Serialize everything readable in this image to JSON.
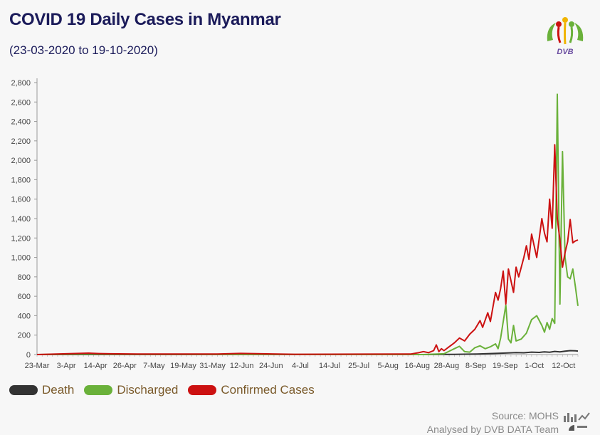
{
  "header": {
    "title": "COVID 19 Daily Cases in Myanmar",
    "subtitle": "(23-03-2020 to 19-10-2020)",
    "logo_text": "DVB"
  },
  "footer": {
    "source": "Source: MOHS",
    "credit": "Analysed by DVB DATA Team"
  },
  "icons": [
    "dvb-logo-icon",
    "bar-line-chart-icon",
    "pie-chart-icon"
  ],
  "chart_data": {
    "type": "line",
    "title": "COVID 19 Daily Cases in Myanmar",
    "subtitle": "(23-03-2020 to 19-10-2020)",
    "xlabel": "",
    "ylabel": "",
    "x_range": [
      "2020-03-23",
      "2020-10-19"
    ],
    "x_tick_labels": [
      "23-Mar",
      "3-Apr",
      "14-Apr",
      "26-Apr",
      "7-May",
      "19-May",
      "31-May",
      "12-Jun",
      "24-Jun",
      "4-Jul",
      "14-Jul",
      "25-Jul",
      "5-Aug",
      "16-Aug",
      "28-Aug",
      "8-Sep",
      "19-Sep",
      "1-Oct",
      "12-Oct"
    ],
    "ylim": [
      0,
      2800
    ],
    "y_ticks": [
      0,
      200,
      400,
      600,
      800,
      1000,
      1200,
      1400,
      1600,
      1800,
      2000,
      2200,
      2400,
      2600,
      2800
    ],
    "y_tick_labels": [
      "0",
      "200",
      "400",
      "600",
      "800",
      "1,000",
      "1,200",
      "1,400",
      "1,600",
      "1,800",
      "2,000",
      "2,200",
      "2,400",
      "2,600",
      "2,800"
    ],
    "grid": false,
    "legend_position": "bottom-left",
    "series": [
      {
        "name": "Death",
        "color": "#333333",
        "points": [
          [
            "2020-03-23",
            0
          ],
          [
            "2020-08-20",
            0
          ],
          [
            "2020-08-25",
            1
          ],
          [
            "2020-09-01",
            2
          ],
          [
            "2020-09-05",
            4
          ],
          [
            "2020-09-10",
            6
          ],
          [
            "2020-09-15",
            10
          ],
          [
            "2020-09-20",
            15
          ],
          [
            "2020-09-25",
            20
          ],
          [
            "2020-09-28",
            18
          ],
          [
            "2020-10-01",
            25
          ],
          [
            "2020-10-04",
            22
          ],
          [
            "2020-10-06",
            28
          ],
          [
            "2020-10-08",
            24
          ],
          [
            "2020-10-10",
            32
          ],
          [
            "2020-10-12",
            28
          ],
          [
            "2020-10-14",
            35
          ],
          [
            "2020-10-16",
            40
          ],
          [
            "2020-10-18",
            38
          ],
          [
            "2020-10-19",
            36
          ]
        ]
      },
      {
        "name": "Discharged",
        "color": "#6ab13a",
        "points": [
          [
            "2020-03-23",
            0
          ],
          [
            "2020-04-12",
            6
          ],
          [
            "2020-04-20",
            3
          ],
          [
            "2020-05-05",
            2
          ],
          [
            "2020-06-01",
            1
          ],
          [
            "2020-08-20",
            0
          ],
          [
            "2020-08-28",
            8
          ],
          [
            "2020-09-01",
            60
          ],
          [
            "2020-09-03",
            85
          ],
          [
            "2020-09-05",
            30
          ],
          [
            "2020-09-07",
            25
          ],
          [
            "2020-09-09",
            70
          ],
          [
            "2020-09-11",
            90
          ],
          [
            "2020-09-13",
            60
          ],
          [
            "2020-09-15",
            80
          ],
          [
            "2020-09-17",
            110
          ],
          [
            "2020-09-18",
            60
          ],
          [
            "2020-09-19",
            170
          ],
          [
            "2020-09-21",
            510
          ],
          [
            "2020-09-22",
            160
          ],
          [
            "2020-09-23",
            120
          ],
          [
            "2020-09-24",
            300
          ],
          [
            "2020-09-25",
            140
          ],
          [
            "2020-09-27",
            160
          ],
          [
            "2020-09-29",
            220
          ],
          [
            "2020-10-01",
            360
          ],
          [
            "2020-10-03",
            400
          ],
          [
            "2020-10-05",
            300
          ],
          [
            "2020-10-06",
            230
          ],
          [
            "2020-10-07",
            330
          ],
          [
            "2020-10-08",
            260
          ],
          [
            "2020-10-09",
            370
          ],
          [
            "2020-10-10",
            320
          ],
          [
            "2020-10-11",
            2680
          ],
          [
            "2020-10-12",
            520
          ],
          [
            "2020-10-13",
            2090
          ],
          [
            "2020-10-14",
            1000
          ],
          [
            "2020-10-15",
            800
          ],
          [
            "2020-10-16",
            780
          ],
          [
            "2020-10-17",
            880
          ],
          [
            "2020-10-18",
            700
          ],
          [
            "2020-10-19",
            500
          ]
        ]
      },
      {
        "name": "Confirmed Cases",
        "color": "#cc1111",
        "points": [
          [
            "2020-03-23",
            0
          ],
          [
            "2020-04-12",
            15
          ],
          [
            "2020-04-16",
            10
          ],
          [
            "2020-04-20",
            8
          ],
          [
            "2020-05-01",
            6
          ],
          [
            "2020-06-01",
            5
          ],
          [
            "2020-06-10",
            12
          ],
          [
            "2020-07-01",
            3
          ],
          [
            "2020-08-15",
            5
          ],
          [
            "2020-08-18",
            18
          ],
          [
            "2020-08-20",
            30
          ],
          [
            "2020-08-22",
            20
          ],
          [
            "2020-08-24",
            40
          ],
          [
            "2020-08-25",
            100
          ],
          [
            "2020-08-26",
            30
          ],
          [
            "2020-08-27",
            60
          ],
          [
            "2020-08-28",
            40
          ],
          [
            "2020-08-30",
            80
          ],
          [
            "2020-09-01",
            120
          ],
          [
            "2020-09-03",
            170
          ],
          [
            "2020-09-05",
            140
          ],
          [
            "2020-09-07",
            210
          ],
          [
            "2020-09-09",
            260
          ],
          [
            "2020-09-11",
            350
          ],
          [
            "2020-09-12",
            280
          ],
          [
            "2020-09-14",
            430
          ],
          [
            "2020-09-15",
            340
          ],
          [
            "2020-09-17",
            640
          ],
          [
            "2020-09-18",
            560
          ],
          [
            "2020-09-19",
            680
          ],
          [
            "2020-09-20",
            860
          ],
          [
            "2020-09-21",
            520
          ],
          [
            "2020-09-22",
            880
          ],
          [
            "2020-09-24",
            640
          ],
          [
            "2020-09-25",
            900
          ],
          [
            "2020-09-26",
            800
          ],
          [
            "2020-09-28",
            1000
          ],
          [
            "2020-09-29",
            1120
          ],
          [
            "2020-09-30",
            980
          ],
          [
            "2020-10-01",
            1240
          ],
          [
            "2020-10-03",
            1000
          ],
          [
            "2020-10-05",
            1400
          ],
          [
            "2020-10-06",
            1250
          ],
          [
            "2020-10-07",
            1160
          ],
          [
            "2020-10-08",
            1600
          ],
          [
            "2020-10-09",
            1300
          ],
          [
            "2020-10-10",
            2160
          ],
          [
            "2020-10-11",
            1400
          ],
          [
            "2020-10-12",
            1180
          ],
          [
            "2020-10-13",
            900
          ],
          [
            "2020-10-14",
            1050
          ],
          [
            "2020-10-15",
            1160
          ],
          [
            "2020-10-16",
            1390
          ],
          [
            "2020-10-17",
            1150
          ],
          [
            "2020-10-18",
            1170
          ],
          [
            "2020-10-19",
            1180
          ]
        ]
      }
    ]
  }
}
